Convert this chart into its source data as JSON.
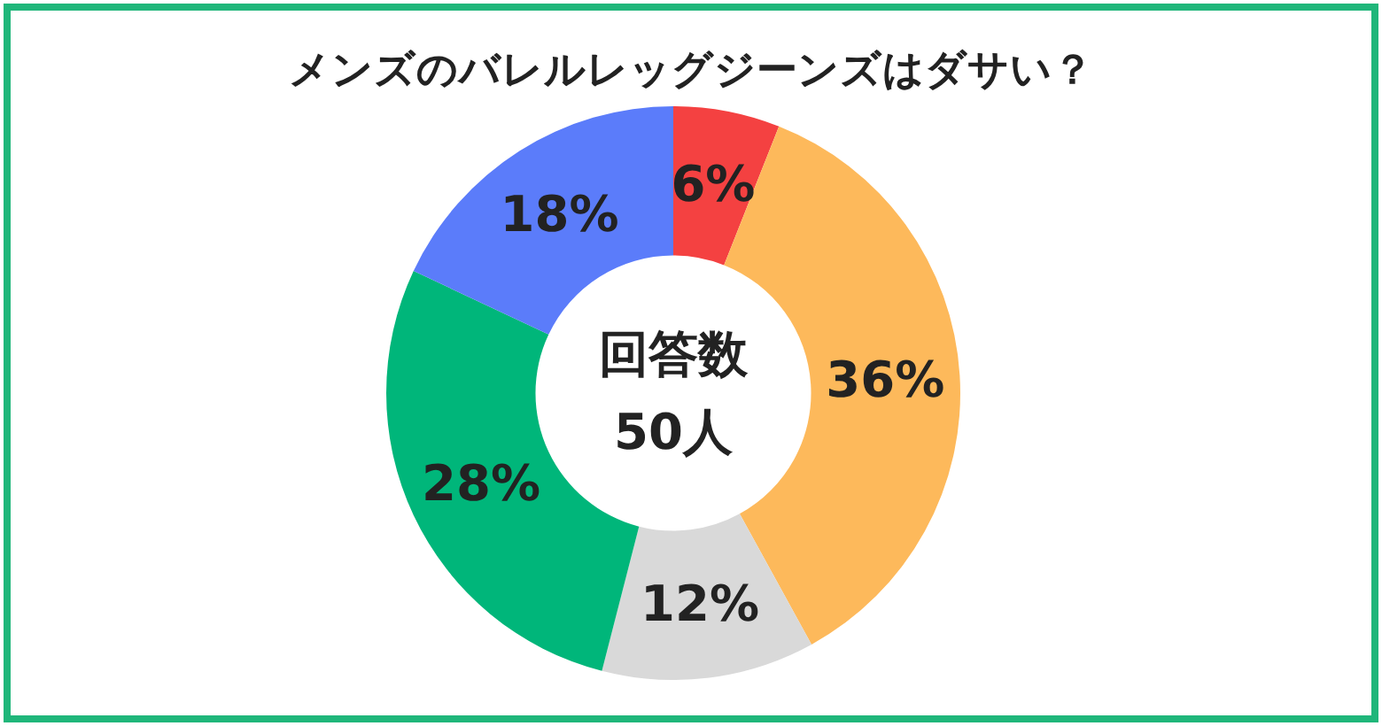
{
  "chart_data": {
    "type": "donut",
    "title": "メンズのバレルレッグジーンズはダサい？",
    "categories": [
      null,
      null,
      null,
      null,
      null
    ],
    "values": [
      6,
      36,
      12,
      28,
      18
    ],
    "value_labels": [
      "6%",
      "36%",
      "12%",
      "28%",
      "18%"
    ],
    "colors": [
      "#f44141",
      "#fdb95b",
      "#d9d9d9",
      "#00b67a",
      "#5b7cfa"
    ],
    "annotations": [
      "回答数",
      "50人"
    ]
  }
}
